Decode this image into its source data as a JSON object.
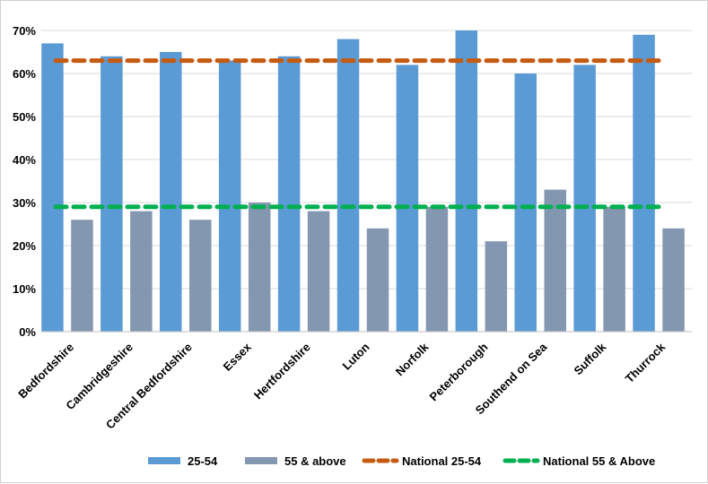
{
  "chart_data": {
    "type": "bar",
    "categories": [
      "Bedfordshire",
      "Cambridgeshire",
      "Central Bedfordshire",
      "Essex",
      "Hertfordshire",
      "Luton",
      "Norfolk",
      "Peterborough",
      "Southend on Sea",
      "Suffolk",
      "Thurrock"
    ],
    "series": [
      {
        "name": "25-54",
        "values": [
          67,
          64,
          65,
          63,
          64,
          68,
          62,
          70,
          60,
          62,
          69
        ],
        "color": "#5b9bd5"
      },
      {
        "name": "55 & above",
        "values": [
          26,
          28,
          26,
          30,
          28,
          24,
          29,
          21,
          33,
          29,
          24
        ],
        "color": "#8497b0"
      }
    ],
    "reference_lines": [
      {
        "name": "National 25-54",
        "value": 63,
        "color": "#c55a11",
        "style": "dashed"
      },
      {
        "name": "National 55 & Above",
        "value": 29,
        "color": "#00b050",
        "style": "dashed"
      }
    ],
    "yticks": [
      "0%",
      "10%",
      "20%",
      "30%",
      "40%",
      "50%",
      "60%",
      "70%"
    ],
    "ylim": [
      0,
      70
    ],
    "grid": true,
    "legend_position": "bottom"
  }
}
